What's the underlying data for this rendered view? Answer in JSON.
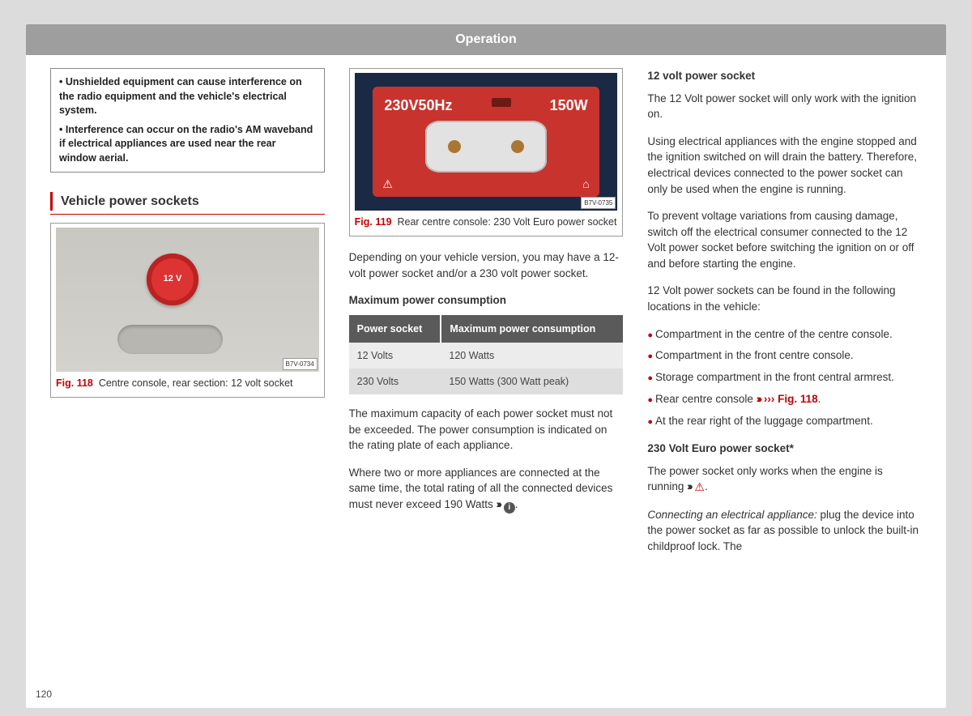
{
  "pageNumber": "120",
  "header": {
    "title": "Operation"
  },
  "colors": {
    "accent_red": "#c40000",
    "header_gray": "#9e9e9e",
    "table_header": "#5a5a5a",
    "table_row_odd": "#ececec",
    "table_row_even": "#dedede",
    "socket_red": "#c9332e",
    "socket_bg": "#1a2a44"
  },
  "col1": {
    "infobox": {
      "item1": "Unshielded equipment can cause interference on the radio equipment and the vehicle's electrical system.",
      "item2": "Interference can occur on the radio's AM waveband if electrical appliances are used near the rear window aerial."
    },
    "sectionTitle": "Vehicle power sockets",
    "fig118": {
      "code": "B7V-0734",
      "label": "Fig. 118",
      "caption": "Centre console, rear section: 12 volt socket",
      "socketText": "12 V"
    }
  },
  "col2": {
    "fig119": {
      "code": "B7V-0735",
      "label": "Fig. 119",
      "caption": "Rear centre console: 230 Volt Euro power socket",
      "leftLabel": "230V50Hz",
      "rightLabel": "150W"
    },
    "intro": "Depending on your vehicle version, you may have a 12-volt power socket and/or a 230 volt power socket.",
    "tableTitle": "Maximum power consumption",
    "table": {
      "headers": {
        "c1": "Power socket",
        "c2": "Maximum power consumption"
      },
      "rows": [
        {
          "c1": "12 Volts",
          "c2": "120 Watts"
        },
        {
          "c1": "230 Volts",
          "c2": "150 Watts (300 Watt peak)"
        }
      ]
    },
    "p1": "The maximum capacity of each power socket must not be exceeded. The power consumption is indicated on the rating plate of each appliance.",
    "p2a": "Where two or more appliances are connected at the same time, the total rating of all the connected devices must never exceed 190 Watts ",
    "p2ref": "›››"
  },
  "col3": {
    "h1": "12 volt power socket",
    "p1": "The 12 Volt power socket will only work with the ignition on.",
    "p2": "Using electrical appliances with the engine stopped and the ignition switched on will drain the battery. Therefore, electrical devices connected to the power socket can only be used when the engine is running.",
    "p3": "To prevent voltage variations from causing damage, switch off the electrical consumer connected to the 12 Volt power socket before switching the ignition on or off and before starting the engine.",
    "p4": "12 Volt power sockets can be found in the following locations in the vehicle:",
    "bullets": {
      "b1": "Compartment in the centre of the centre console.",
      "b2": "Compartment in the front centre console.",
      "b3": "Storage compartment in the front central armrest.",
      "b4a": "Rear centre console ",
      "b4ref": "››› Fig. 118",
      "b5": "At the rear right of the luggage compartment."
    },
    "h2": "230 Volt Euro power socket*",
    "p5a": "The power socket only works when the engine is running ",
    "p5ref": "›››",
    "p6label": "Connecting an electrical appliance:",
    "p6": " plug the device into the power socket as far as possible to unlock the built-in childproof lock. The"
  }
}
